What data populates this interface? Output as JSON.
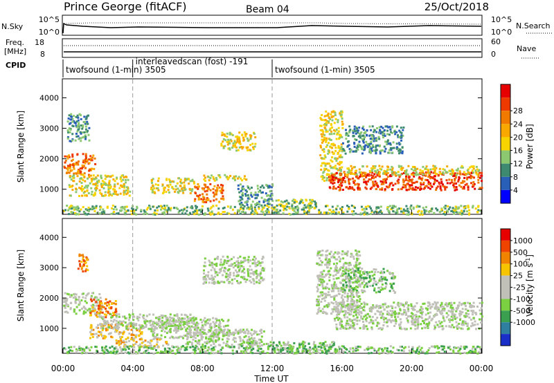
{
  "header": {
    "station": "Prince George (fitACF)",
    "beam": "Beam 04",
    "date": "25/Oct/2018"
  },
  "sky_panel": {
    "left_label": "N.Sky",
    "right_label": "N.Search",
    "ticks_left": [
      "10^5",
      "10^0"
    ],
    "ticks_right": [
      "10^5",
      "10^0"
    ]
  },
  "freq_panel": {
    "label_line1": "Freq.",
    "label_line2": "[MHz]",
    "right_label": "Nave",
    "ticks_left": [
      "18",
      "8"
    ],
    "ticks_right": [
      "60",
      "0"
    ]
  },
  "cpid": {
    "label": "CPID",
    "segments": [
      {
        "text": "twofsound (1-min) 3505",
        "start": 0.0,
        "end": 4.0
      },
      {
        "text": "interleavedscan (fost) -191",
        "start": 4.0,
        "end": 12.0
      },
      {
        "text": "twofsound (1-min) 3505",
        "start": 12.0,
        "end": 24.0
      }
    ]
  },
  "chart_data": [
    {
      "type": "heatmap",
      "ylabel": "Slant Range [km]",
      "yticks": [
        "1000",
        "2000",
        "3000",
        "4000"
      ],
      "ylim": [
        200,
        4600
      ],
      "colorbar": {
        "label": "Power [dB]",
        "ticks": [
          "4",
          "8",
          "12",
          "16",
          "20",
          "24",
          "28"
        ],
        "colors": [
          "#0000ff",
          "#2a5fb8",
          "#3e8a70",
          "#8bc870",
          "#f7d400",
          "#f9a800",
          "#f07a00",
          "#ee3a00",
          "#e60000"
        ]
      },
      "regions": [
        {
          "x": [
            0.0,
            1.8
          ],
          "y": [
            1500,
            2200
          ],
          "level": 6
        },
        {
          "x": [
            0.2,
            1.5
          ],
          "y": [
            2600,
            3500
          ],
          "level": 2
        },
        {
          "x": [
            0.3,
            3.8
          ],
          "y": [
            800,
            1500
          ],
          "level": 4
        },
        {
          "x": [
            5.0,
            7.5
          ],
          "y": [
            900,
            1400
          ],
          "level": 4
        },
        {
          "x": [
            7.5,
            9.2
          ],
          "y": [
            600,
            1200
          ],
          "level": 6
        },
        {
          "x": [
            8.0,
            10.5
          ],
          "y": [
            1300,
            1500
          ],
          "level": 4
        },
        {
          "x": [
            9.0,
            11.0
          ],
          "y": [
            2300,
            2900
          ],
          "level": 4
        },
        {
          "x": [
            10.0,
            12.0
          ],
          "y": [
            500,
            1200
          ],
          "level": 2
        },
        {
          "x": [
            12.0,
            14.5
          ],
          "y": [
            400,
            700
          ],
          "level": 3
        },
        {
          "x": [
            14.7,
            16.0
          ],
          "y": [
            1300,
            3600
          ],
          "level": 4
        },
        {
          "x": [
            15.2,
            24.0
          ],
          "y": [
            1000,
            1600
          ],
          "level": 7
        },
        {
          "x": [
            16.0,
            24.0
          ],
          "y": [
            1500,
            1800
          ],
          "level": 4
        },
        {
          "x": [
            16.0,
            19.5
          ],
          "y": [
            2200,
            3100
          ],
          "level": 2
        },
        {
          "x": [
            0.0,
            24.0
          ],
          "y": [
            200,
            500
          ],
          "level": 3
        }
      ]
    },
    {
      "type": "heatmap",
      "ylabel": "Slant Range [km]",
      "yticks": [
        "1000",
        "2000",
        "3000",
        "4000"
      ],
      "ylim": [
        200,
        4600
      ],
      "xlabel": "Time UT",
      "xticks": [
        "00:00",
        "04:00",
        "08:00",
        "12:00",
        "16:00",
        "20:00",
        "00:00"
      ],
      "xlim": [
        0,
        24
      ],
      "colorbar": {
        "label_main": "Velocity",
        "label_unit": "[m s",
        "label_exp": "-1",
        "label_end": "]",
        "ticks": [
          "1000",
          "500",
          "100",
          "25",
          "-25",
          "-100",
          "-500",
          "-1000"
        ],
        "colors": [
          "#1a2fc8",
          "#2e7fa0",
          "#3aa050",
          "#7ad040",
          "#c0c0b8",
          "#c0c0b8",
          "#f7c400",
          "#f08400",
          "#ee4400",
          "#e60000"
        ]
      },
      "regions": [
        {
          "x": [
            0.0,
            2.2
          ],
          "y": [
            1500,
            2200
          ],
          "level": 4
        },
        {
          "x": [
            0.8,
            1.4
          ],
          "y": [
            2900,
            3500
          ],
          "level": 7
        },
        {
          "x": [
            1.5,
            3.0
          ],
          "y": [
            1400,
            2000
          ],
          "level": 7
        },
        {
          "x": [
            1.5,
            4.5
          ],
          "y": [
            700,
            1200
          ],
          "level": 6
        },
        {
          "x": [
            2.0,
            7.5
          ],
          "y": [
            1000,
            1500
          ],
          "level": 4
        },
        {
          "x": [
            5.0,
            9.5
          ],
          "y": [
            700,
            1400
          ],
          "level": 4
        },
        {
          "x": [
            3.0,
            6.0
          ],
          "y": [
            400,
            700
          ],
          "level": 6
        },
        {
          "x": [
            8.0,
            11.5
          ],
          "y": [
            2500,
            3400
          ],
          "level": 4
        },
        {
          "x": [
            7.0,
            11.5
          ],
          "y": [
            400,
            1000
          ],
          "level": 4
        },
        {
          "x": [
            10.5,
            15.5
          ],
          "y": [
            200,
            600
          ],
          "level": 3
        },
        {
          "x": [
            14.5,
            17.0
          ],
          "y": [
            1500,
            3600
          ],
          "level": 4
        },
        {
          "x": [
            15.5,
            24.0
          ],
          "y": [
            1000,
            1900
          ],
          "level": 4
        },
        {
          "x": [
            16.0,
            19.0
          ],
          "y": [
            2200,
            3000
          ],
          "level": 3
        },
        {
          "x": [
            0.0,
            24.0
          ],
          "y": [
            200,
            450
          ],
          "level": 3
        }
      ]
    }
  ]
}
